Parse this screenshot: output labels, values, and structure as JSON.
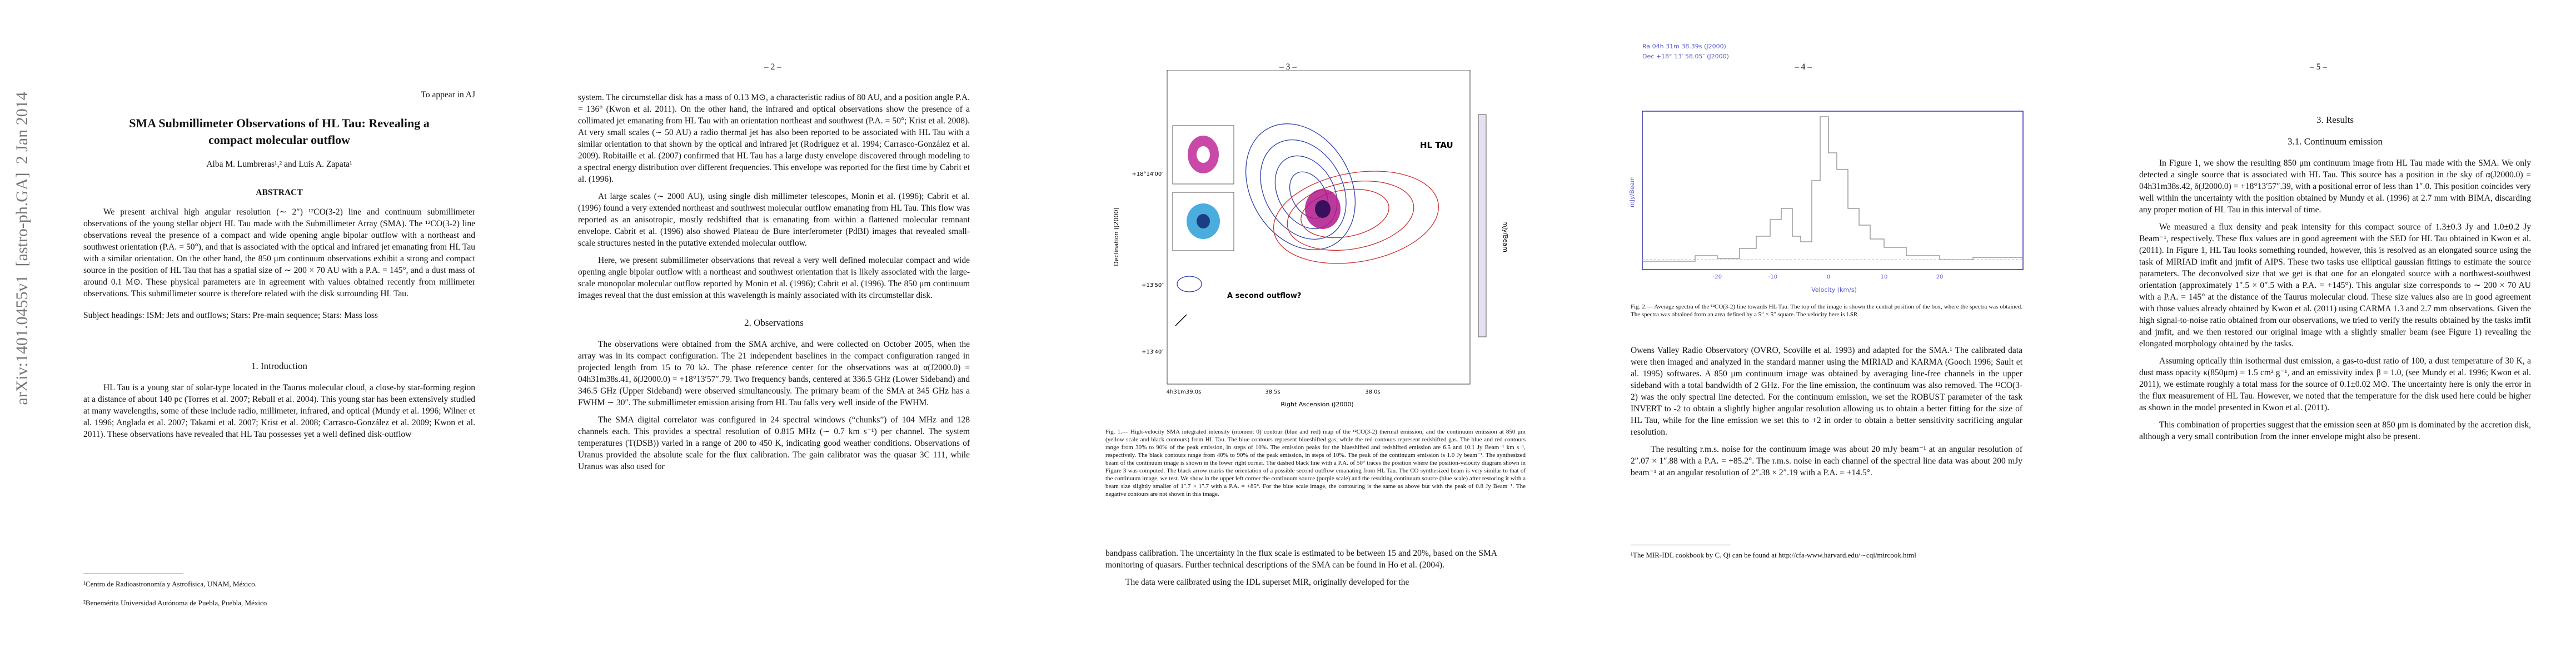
{
  "arxiv_stamp": "arXiv:1401.0455v1  [astro-ph.GA]  2 Jan 2014",
  "page1": {
    "running_head": "To appear in AJ",
    "title": "SMA Submillimeter Observations of HL Tau: Revealing a compact molecular outflow",
    "authors": "Alba M. Lumbreras¹,² and Luis A. Zapata¹",
    "abstract_heading": "ABSTRACT",
    "abstract": "We present archival high angular resolution (∼ 2″) ¹²CO(3-2) line and continuum submillimeter observations of the young stellar object HL Tau made with the Submillimeter Array (SMA). The ¹²CO(3-2) line observations reveal the presence of a compact and wide opening angle bipolar outflow with a northeast and southwest orientation (P.A. = 50°), and that is associated with the optical and infrared jet emanating from HL Tau with a similar orientation. On the other hand, the 850 μm continuum observations exhibit a strong and compact source in the position of HL Tau that has a spatial size of ∼ 200 × 70 AU with a P.A. = 145°, and a dust mass of around 0.1 M⊙. These physical parameters are in agreement with values obtained recently from millimeter observations. This submillimeter source is therefore related with the disk surrounding HL Tau.",
    "subject_headings": "Subject headings: ISM: Jets and outflows; Stars: Pre-main sequence; Stars: Mass loss",
    "section_heading": "1. Introduction",
    "paragraphs": [
      "HL Tau is a young star of solar-type located in the Taurus molecular cloud, a close-by star-forming region at a distance of about 140 pc (Torres et al. 2007; Rebull et al. 2004). This young star has been extensively studied at many wavelengths, some of these include radio, millimeter, infrared, and optical (Mundy et al. 1996; Wilner et al. 1996; Anglada et al. 2007; Takami et al. 2007; Krist et al. 2008; Carrasco-González et al. 2009; Kwon et al. 2011). These observations have revealed that HL Tau possesses yet a well defined disk-outflow"
    ],
    "footnotes": [
      "¹Centro de Radioastronomía y Astrofísica, UNAM, México.",
      "²Benemérita Universidad Autónoma de Puebla, Puebla, México"
    ]
  },
  "page2": {
    "page_number": "– 2 –",
    "paragraphs_a": [
      "system. The circumstellar disk has a mass of 0.13 M⊙, a characteristic radius of 80 AU, and a position angle P.A. = 136° (Kwon et al. 2011). On the other hand, the infrared and optical observations show the presence of a collimated jet emanating from HL Tau with an orientation northeast and southwest (P.A. = 50°; Krist et al. 2008). At very small scales (∼ 50 AU) a radio thermal jet has also been reported to be associated with HL Tau with a similar orientation to that shown by the optical and infrared jet (Rodríguez et al. 1994; Carrasco-González et al. 2009). Robitaille et al. (2007) confirmed that HL Tau has a large dusty envelope discovered through modeling to a spectral energy distribution over different frequencies. This envelope was reported for the first time by Cabrit et al. (1996).",
      "At large scales (∼ 2000 AU), using single dish millimeter telescopes, Monin et al. (1996); Cabrit et al. (1996) found a very extended northeast and southwest molecular outflow emanating from HL Tau. This flow was reported as an anisotropic, mostly redshifted that is emanating from within a flattened molecular remnant envelope. Cabrit et al. (1996) also showed Plateau de Bure interferometer (PdBI) images that revealed small-scale structures nested in the putative extended molecular outflow.",
      "Here, we present submillimeter observations that reveal a very well defined molecular compact and wide opening angle bipolar outflow with a northeast and southwest orientation that is likely associated with the large-scale monopolar molecular outflow reported by Monin et al. (1996); Cabrit et al. (1996). The 850 μm continuum images reveal that the dust emission at this wavelength is mainly associated with its circumstellar disk."
    ],
    "section_heading": "2. Observations",
    "paragraphs_b": [
      "The observations were obtained from the SMA archive, and were collected on October 2005, when the array was in its compact configuration. The 21 independent baselines in the compact configuration ranged in projected length from 15 to 70 kλ. The phase reference center for the observations was at α(J2000.0) = 04h31m38s.41, δ(J2000.0) = +18°13′57″.79. Two frequency bands, centered at 336.5 GHz (Lower Sideband) and 346.5 GHz (Upper Sideband) were observed simultaneously. The primary beam of the SMA at 345 GHz has a FWHM ∼ 30″. The submillimeter emission arising from HL Tau falls very well inside of the FWHM.",
      "The SMA digital correlator was configured in 24 spectral windows (“chunks”) of 104 MHz and 128 channels each. This provides a spectral resolution of 0.815 MHz (∼ 0.7 km s⁻¹) per channel. The system temperatures (T(DSB)) varied in a range of 200 to 450 K, indicating good weather conditions. Observations of Uranus provided the absolute scale for the flux calibration. The gain calibrator was the quasar 3C 111, while Uranus was also used for"
    ]
  },
  "page3": {
    "page_number": "– 3 –",
    "figure": {
      "label_source": "HL TAU",
      "label_outflow": "A second outflow?",
      "ylabel": "Declination (J2000)",
      "xlabel": "Right Ascension (J2000)",
      "colorbar_label": "mJy/Beam",
      "yticks": [
        "+18°14′00″",
        "+13′50″",
        "+13′40″"
      ],
      "xticks": [
        "4h31m39.0s",
        "38.5s",
        "38.0s"
      ]
    },
    "caption": "Fig. 1.— High-velocity SMA integrated intensity (moment 0) contour (blue and red) map of the ¹²CO(3-2) thermal emission, and the continuum emission at 850 μm (yellow scale and black contours) from HL Tau. The blue contours represent blueshifted gas, while the red contours represent redshifted gas. The blue and red contours range from 30% to 90% of the peak emission, in steps of 10%. The emission peaks for the blueshifted and redshifted emission are 6.5 and 10.1 Jy Beam⁻¹ km s⁻¹, respectively. The black contours range from 40% to 90% of the peak emission, in steps of 10%. The peak of the continuum emission is 1.0 Jy beam⁻¹. The synthesized beam of the continuum image is shown in the lower right corner. The dashed black line with a P.A. of 50° traces the position where the position-velocity diagram shown in Figure 3 was computed. The black arrow marks the orientation of a possible second outflow emanating from HL Tau. The CO synthesized beam is very similar to that of the continuum image, we test. We show in the upper left corner the continuum source (purple scale) and the resulting continuum source (blue scale) after restoring it with a beam size slightly smaller of 1″.7 × 1″.7 with a P.A. = +85°. For the blue scale image, the contouring is the same as above but with the peak of 0.8 Jy Beam⁻¹. The negative contours are not shown in this image.",
    "paragraphs": [
      "bandpass calibration. The uncertainty in the flux scale is estimated to be between 15 and 20%, based on the SMA monitoring of quasars. Further technical descriptions of the SMA can be found in Ho et al. (2004).",
      "The data were calibrated using the IDL superset MIR, originally developed for the"
    ]
  },
  "page4": {
    "page_number": "– 4 –",
    "figure": {
      "ra_label": "Ra 04h 31m 38.39s (J2000)",
      "dec_label": "Dec +18° 13′ 58.05″ (J2000)",
      "ylabel": "mJy/Beam",
      "xlabel": "Velocity (km/s)",
      "xticks": [
        "-20",
        "-10",
        "0",
        "10",
        "20"
      ]
    },
    "caption": "Fig. 2.— Average spectra of the ¹²CO(3-2) line towards HL Tau. The top of the image is shown the central position of the box, where the spectra was obtained. The spectra was obtained from an area defined by a 5″ × 5″ square. The velocity here is LSR.",
    "paragraphs": [
      "Owens Valley Radio Observatory (OVRO, Scoville et al. 1993) and adapted for the SMA.¹ The calibrated data were then imaged and analyzed in the standard manner using the MIRIAD and KARMA (Gooch 1996; Sault et al. 1995) softwares. A 850 μm continuum image was obtained by averaging line-free channels in the upper sideband with a total bandwidth of 2 GHz. For the line emission, the continuum was also removed. The ¹²CO(3-2) was the only spectral line detected. For the continuum emission, we set the ROBUST parameter of the task INVERT to -2 to obtain a slightly higher angular resolution allowing us to obtain a better fitting for the size of HL Tau, while for the line emission we set this to +2 in order to obtain a better sensitivity sacrificing angular resolution.",
      "The resulting r.m.s. noise for the continuum image was about 20 mJy beam⁻¹ at an angular resolution of 2″.07 × 1″.88 with a P.A. = +85.2°. The r.m.s. noise in each channel of the spectral line data was about 200 mJy beam⁻¹ at an angular resolution of 2″.38 × 2″.19 with a P.A. = +14.5°."
    ],
    "footnote": "¹The MIR-IDL cookbook by C. Qi can be found at http://cfa-www.harvard.edu/∼cqi/mircook.html"
  },
  "page5": {
    "page_number": "– 5 –",
    "section_heading": "3. Results",
    "subsection_heading": "3.1. Continuum emission",
    "paragraphs": [
      "In Figure 1, we show the resulting 850 μm continuum image from HL Tau made with the SMA. We only detected a single source that is associated with HL Tau. This source has a position in the sky of α(J2000.0) = 04h31m38s.42, δ(J2000.0) = +18°13′57″.39, with a positional error of less than 1″.0. This position coincides very well within the uncertainty with the position obtained by Mundy et al. (1996) at 2.7 mm with BIMA, discarding any proper motion of HL Tau in this interval of time.",
      "We measured a flux density and peak intensity for this compact source of 1.3±0.3 Jy and 1.0±0.2 Jy Beam⁻¹, respectively. These flux values are in good agreement with the SED for HL Tau obtained in Kwon et al. (2011). In Figure 1, HL Tau looks something rounded, however, this is resolved as an elongated source using the task of MIRIAD imfit and jmfit of AIPS. These two tasks use elliptical gaussian fittings to estimate the source parameters. The deconvolved size that we get is that one for an elongated source with a northwest-southwest orientation (approximately 1″.5 × 0″.5 with a P.A. = +145°). This angular size corresponds to ∼ 200 × 70 AU with a P.A. = 145° at the distance of the Taurus molecular cloud. These size values also are in good agreement with those values already obtained by Kwon et al. (2011) using CARMA 1.3 and 2.7 mm observations. Given the high signal-to-noise ratio obtained from our observations, we tried to verify the results obtained by the tasks imfit and jmfit, and we then restored our original image with a slightly smaller beam (see Figure 1) revealing the elongated morphology obtained by the tasks.",
      "Assuming optically thin isothermal dust emission, a gas-to-dust ratio of 100, a dust temperature of 30 K, a dust mass opacity κ(850μm) = 1.5 cm² g⁻¹, and an emissivity index β = 1.0, (see Mundy et al. 1996; Kwon et al. 2011), we estimate roughly a total mass for the source of 0.1±0.02 M⊙. The uncertainty here is only the error in the flux measurement of HL Tau. However, we noted that the temperature for the disk used here could be higher as shown in the model presented in Kwon et al. (2011).",
      "This combination of properties suggest that the emission seen at 850 μm is dominated by the accretion disk, although a very small contribution from the inner envelope might also be present."
    ]
  }
}
